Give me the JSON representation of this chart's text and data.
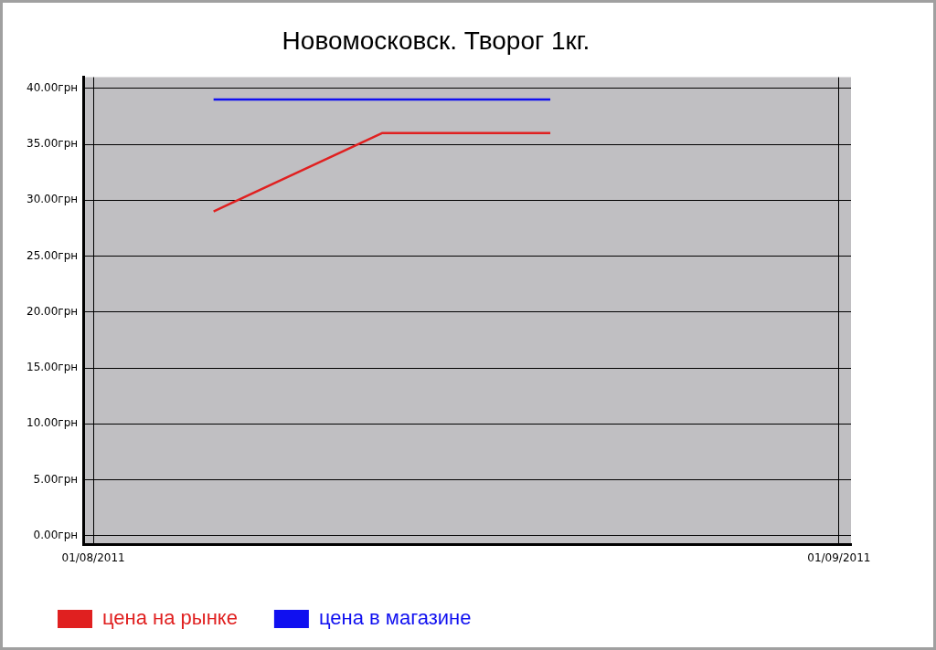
{
  "chart_data": {
    "type": "line",
    "title": "Новомосковск. Творог 1кг.",
    "x": [
      "2011-08-06",
      "2011-08-13",
      "2011-08-20"
    ],
    "series": [
      {
        "name": "цена на рынке",
        "color": "#e02020",
        "values": [
          29,
          36,
          36
        ]
      },
      {
        "name": "цена в магазине",
        "color": "#1010f0",
        "values": [
          39,
          39,
          39
        ]
      }
    ],
    "xlim": [
      "2011-07-31T14:00",
      "2011-09-01T12:00"
    ],
    "xticks": [
      {
        "value": "2011-08-01",
        "label": "01/08/2011"
      },
      {
        "value": "2011-09-01",
        "label": "01/09/2011"
      }
    ],
    "ylim": [
      -0.8,
      41
    ],
    "yticks": [
      {
        "value": 0,
        "label": "0.00грн"
      },
      {
        "value": 5,
        "label": "5.00грн"
      },
      {
        "value": 10,
        "label": "10.00грн"
      },
      {
        "value": 15,
        "label": "15.00грн"
      },
      {
        "value": 20,
        "label": "20.00грн"
      },
      {
        "value": 25,
        "label": "25.00грн"
      },
      {
        "value": 30,
        "label": "30.00грн"
      },
      {
        "value": 35,
        "label": "35.00грн"
      },
      {
        "value": 40,
        "label": "40.00грн"
      }
    ],
    "grid": true,
    "legend": "bottom left",
    "marker": "none",
    "line_style": "solid"
  }
}
